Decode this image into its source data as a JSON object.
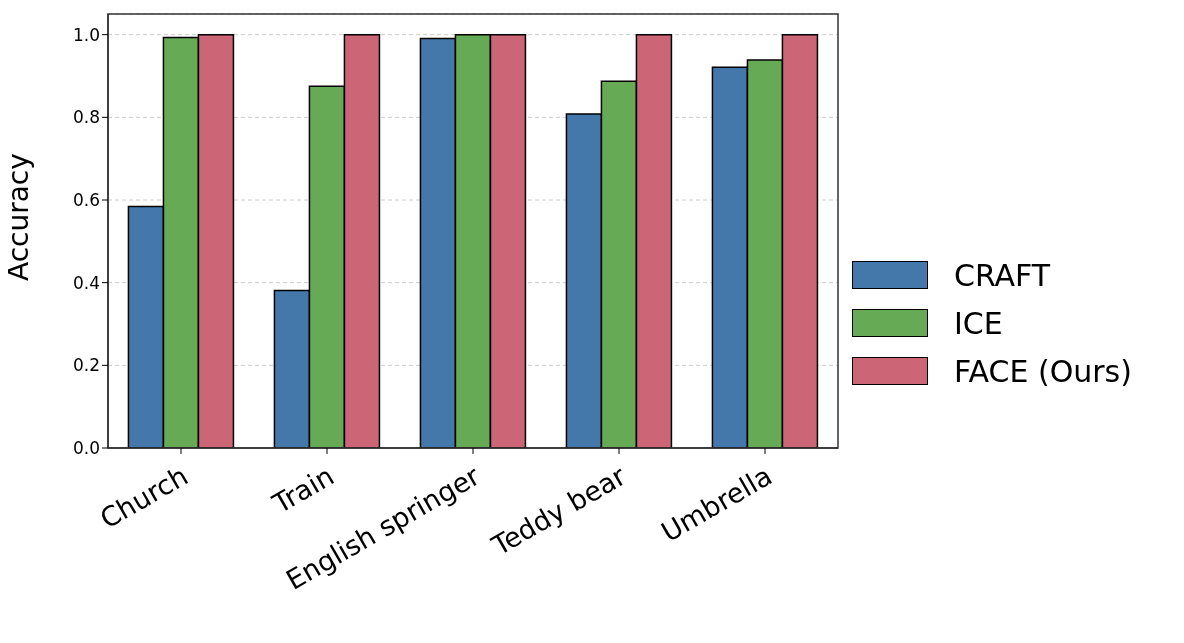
{
  "chart_data": {
    "type": "bar",
    "ylabel": "Accuracy",
    "categories": [
      "Church",
      "Train",
      "English springer",
      "Teddy bear",
      "Umbrella"
    ],
    "series": [
      {
        "name": "CRAFT",
        "color": "#4477aa",
        "values": [
          0.584,
          0.381,
          0.991,
          0.808,
          0.921
        ]
      },
      {
        "name": "ICE",
        "color": "#66aa55",
        "values": [
          0.993,
          0.875,
          1.0,
          0.887,
          0.939
        ]
      },
      {
        "name": "FACE (Ours)",
        "color": "#cc6677",
        "values": [
          1.0,
          1.0,
          1.0,
          1.0,
          1.0
        ]
      }
    ],
    "ylim": [
      0,
      1.05
    ],
    "yticks": [
      {
        "value": 0,
        "label": "0.0"
      },
      0.2,
      0.4,
      0.6,
      0.8,
      {
        "value": 1,
        "label": "1.0"
      }
    ],
    "grid": "y",
    "legend": "right"
  }
}
